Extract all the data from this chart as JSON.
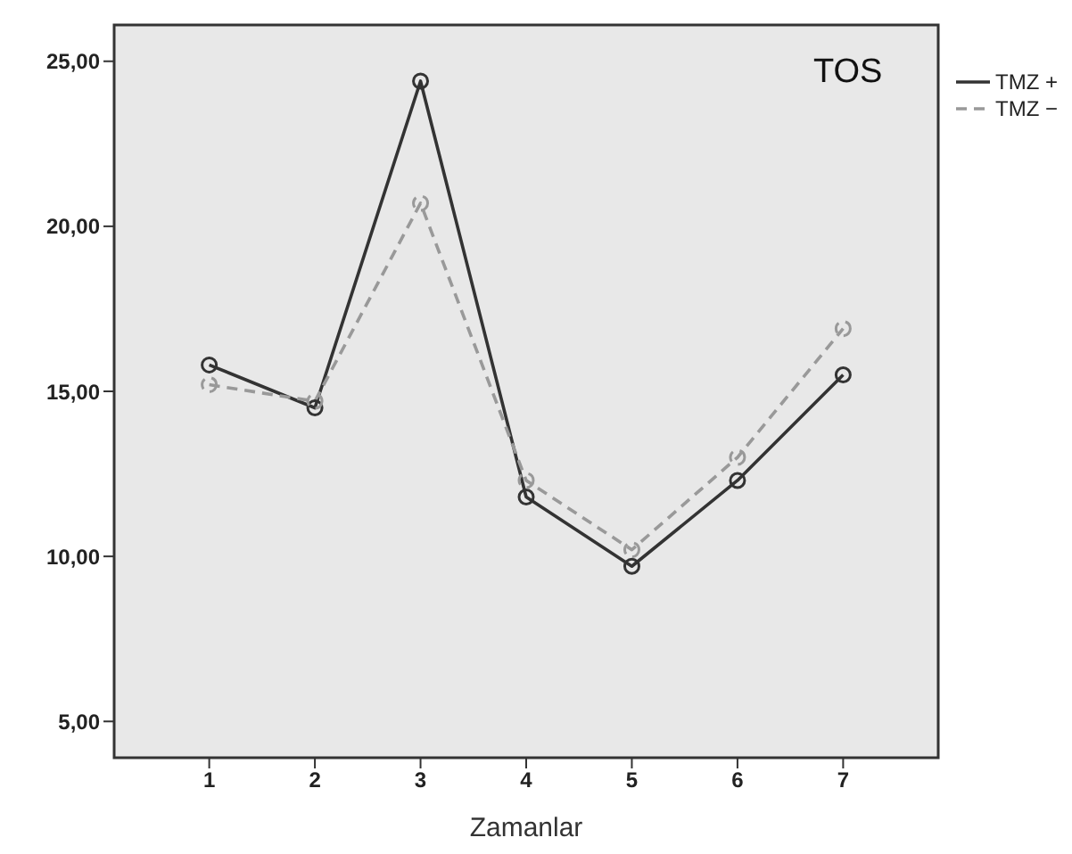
{
  "chart_data": {
    "type": "line",
    "xlabel": "Zamanlar",
    "annotations": [
      "TOS"
    ],
    "x": [
      1,
      2,
      3,
      4,
      5,
      6,
      7
    ],
    "xlim": [
      0.1,
      7.9
    ],
    "xticks": [
      1,
      2,
      3,
      4,
      5,
      6,
      7
    ],
    "ylim": [
      3.9,
      26.1
    ],
    "yticks": [
      {
        "value": 5,
        "label": "5,00"
      },
      {
        "value": 10,
        "label": "10,00"
      },
      {
        "value": 15,
        "label": "15,00"
      },
      {
        "value": 20,
        "label": "20,00"
      },
      {
        "value": 25,
        "label": "25,00"
      }
    ],
    "series": [
      {
        "name": "TMZ +",
        "color": "#333333",
        "line_style": "solid",
        "values": [
          15.8,
          14.5,
          24.4,
          11.8,
          9.7,
          12.3,
          15.5
        ]
      },
      {
        "name": "TMZ −",
        "color": "#999999",
        "line_style": "dashed",
        "values": [
          15.2,
          14.7,
          20.7,
          12.3,
          10.2,
          13.0,
          16.9
        ]
      }
    ],
    "marker": "circle",
    "legend": "top right"
  }
}
